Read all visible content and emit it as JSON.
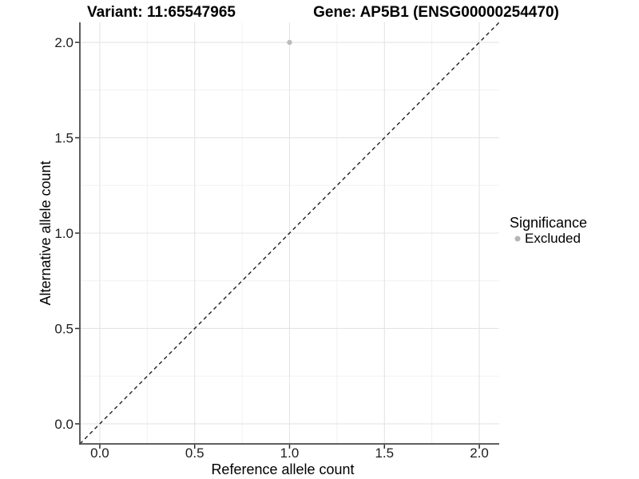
{
  "header": {
    "variant_title": "Variant: 11:65547965",
    "gene_title": "Gene: AP5B1 (ENSG00000254470)"
  },
  "chart_data": {
    "type": "scatter",
    "titles": [
      "Variant: 11:65547965",
      "Gene: AP5B1 (ENSG00000254470)"
    ],
    "xlabel": "Reference allele count",
    "ylabel": "Alternative allele count",
    "xlim": [
      -0.105,
      2.105
    ],
    "ylim": [
      -0.105,
      2.105
    ],
    "x_ticks": [
      0,
      0.5,
      1,
      1.5,
      2
    ],
    "x_tick_labels": [
      "0.0",
      "0.5",
      "1.0",
      "1.5",
      "2.0"
    ],
    "y_ticks": [
      0,
      0.5,
      1,
      1.5,
      2
    ],
    "y_tick_labels": [
      "0.0",
      "0.5",
      "1.0",
      "1.5",
      "2.0"
    ],
    "minor_breaks": [
      0.25,
      0.75,
      1.25,
      1.75
    ],
    "grid": {
      "visible": true,
      "major_color": "#e4e4e4",
      "minor_color": "#f1f1f1"
    },
    "identity_line": {
      "style": "dashed",
      "slope": 1,
      "intercept": 0,
      "color": "#1f1f1f"
    },
    "points": [
      {
        "x": 1.0,
        "y": 2.0,
        "significance": "Excluded",
        "color": "#bcbcbc"
      }
    ],
    "legend": {
      "position": "right",
      "title": "Significance",
      "entries": [
        {
          "label": "Excluded",
          "marker": "circle",
          "color": "#b5b5b5"
        }
      ]
    },
    "colors": {
      "background": "#ffffff",
      "axis_line": "#4a4a4a",
      "tick": "#2b2b2b"
    }
  }
}
